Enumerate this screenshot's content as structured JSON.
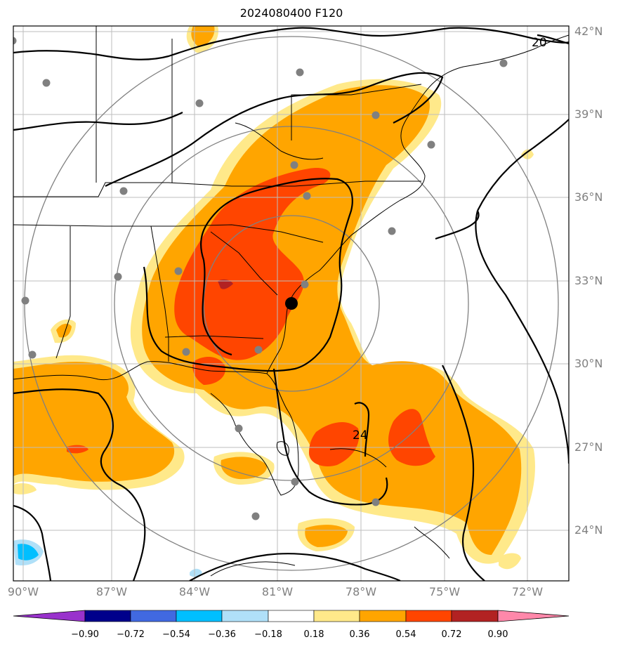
{
  "title": "2024080400 F120",
  "lat_labels": [
    "42°N",
    "39°N",
    "36°N",
    "33°N",
    "30°N",
    "27°N",
    "24°N"
  ],
  "lon_labels": [
    "90°W",
    "87°W",
    "84°W",
    "81°W",
    "78°W",
    "75°W",
    "72°W"
  ],
  "contour_labels": [
    "20",
    "24"
  ],
  "colorbar": {
    "ticks": [
      "−0.90",
      "−0.72",
      "−0.54",
      "−0.36",
      "−0.18",
      "0.18",
      "0.36",
      "0.54",
      "0.72",
      "0.90"
    ],
    "colors": [
      "#9932cc",
      "#00008b",
      "#4169e1",
      "#00bfff",
      "#b0e0f8",
      "#ffffff",
      "#ffe98a",
      "#ffa500",
      "#ff4500",
      "#b22222",
      "#ff88aa"
    ]
  },
  "colors": {
    "level_036": "#ffa500",
    "level_018": "#ffe98a",
    "level_054": "#ff4500",
    "level_072": "#b22222",
    "neg_036": "#00bfff",
    "neg_018": "#b0e0f8"
  }
}
